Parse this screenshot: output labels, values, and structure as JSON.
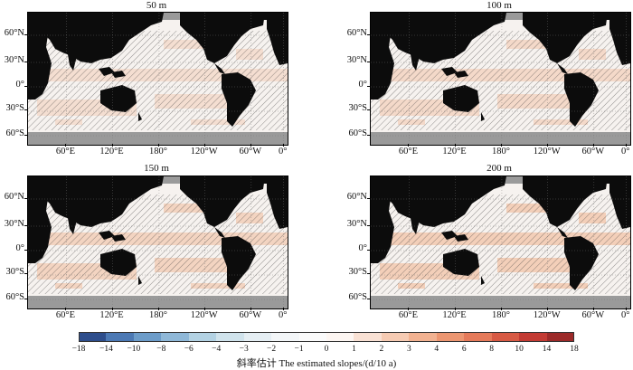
{
  "panels": [
    {
      "title": "50 m"
    },
    {
      "title": "100 m"
    },
    {
      "title": "150 m"
    },
    {
      "title": "200 m"
    }
  ],
  "lat_labels": [
    "60°N",
    "30°N",
    "0°",
    "30°S",
    "60°S"
  ],
  "lon_labels": [
    "60°E",
    "120°E",
    "180°",
    "120°W",
    "60°W",
    "0°"
  ],
  "colorbar": {
    "ticks": [
      "−18",
      "−14",
      "−10",
      "−8",
      "−6",
      "−4",
      "−3",
      "−2",
      "−1",
      "0",
      "1",
      "2",
      "3",
      "4",
      "6",
      "8",
      "10",
      "14",
      "18"
    ],
    "colors": [
      "#2e4e8c",
      "#4c79b4",
      "#6c9cc9",
      "#8fb8d8",
      "#b3d2e3",
      "#d0e3ec",
      "#e5eef3",
      "#f3f6f8",
      "#fbfbfb",
      "#fdf6f2",
      "#f9e1d4",
      "#f6cbb3",
      "#f2b291",
      "#ec9671",
      "#e57a5a",
      "#d75a44",
      "#c33b34",
      "#9c2a29"
    ],
    "label": "斜率估计 The estimated slopes/(d/10 a)"
  },
  "colors": {
    "land": "#0c0c0c",
    "sea_ice_mask": "#9a9a9a",
    "ocean_base": "#f6f2ef",
    "warm_patch": "#f2c6ad"
  }
}
